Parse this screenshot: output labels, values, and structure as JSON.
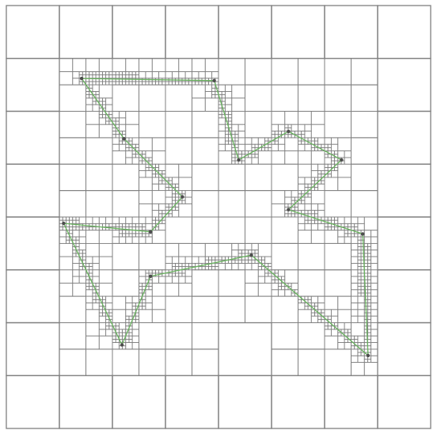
{
  "figure": {
    "kind": "adaptive quadtree grid refined along a closed polygon outline",
    "grid_line_color": "#7f7f7f",
    "curve_color": "#69b35f",
    "background": "#ffffff",
    "base_grid": {
      "columns": 8,
      "rows": 8
    },
    "refinement_levels": 4,
    "curve_vertices": [
      [
        1.42,
        1.38
      ],
      [
        3.92,
        1.42
      ],
      [
        4.38,
        2.92
      ],
      [
        5.32,
        2.38
      ],
      [
        6.32,
        2.92
      ],
      [
        5.32,
        3.86
      ],
      [
        6.72,
        4.32
      ],
      [
        6.82,
        6.62
      ],
      [
        4.62,
        4.72
      ],
      [
        2.72,
        5.12
      ],
      [
        2.18,
        6.42
      ],
      [
        1.08,
        4.12
      ],
      [
        2.72,
        4.28
      ],
      [
        3.32,
        3.62
      ],
      [
        2.22,
        2.52
      ],
      [
        1.42,
        1.38
      ]
    ]
  }
}
